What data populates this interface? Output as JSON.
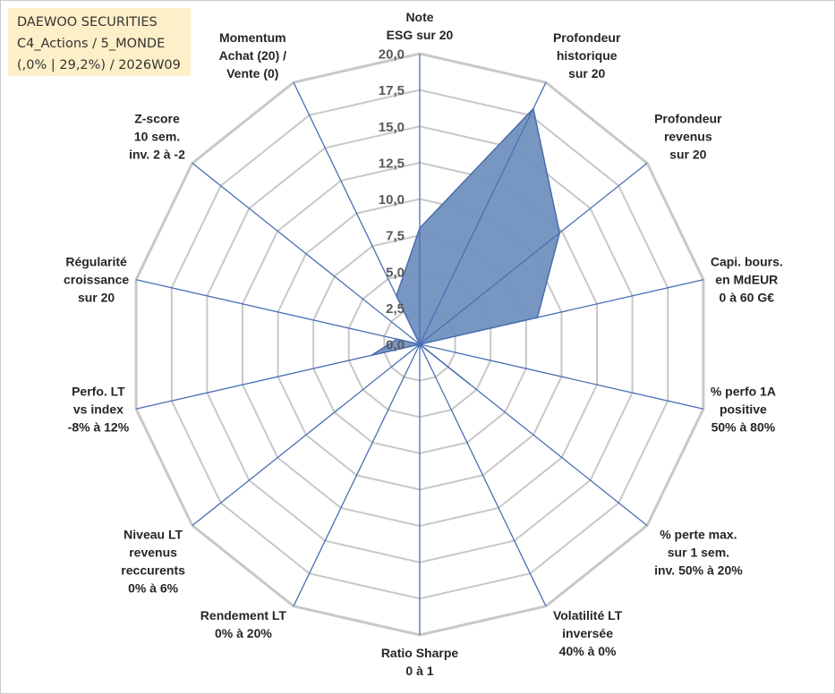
{
  "info": {
    "line1": "DAEWOO SECURITIES",
    "line2": "C4_Actions / 5_MONDE",
    "line3": "(,0% | 29,2%) / 2026W09"
  },
  "chart_data": {
    "type": "radar",
    "r_range": [
      0,
      20
    ],
    "tick_step": 2.5,
    "tick_labels": [
      "0,0",
      "2,5",
      "5,0",
      "7,5",
      "10,0",
      "12,5",
      "15,0",
      "17,5",
      "20,0"
    ],
    "grid": true,
    "axes": [
      [
        "Note",
        "ESG sur 20"
      ],
      [
        "Profondeur",
        "historique",
        "sur 20"
      ],
      [
        "Profondeur",
        "revenus",
        "sur 20"
      ],
      [
        "Capi. bours.",
        "en MdEUR",
        "0 à 60 G€"
      ],
      [
        "% perfo 1A",
        "positive",
        "50% à 80%"
      ],
      [
        "% perte max.",
        "sur 1 sem.",
        "inv. 50% à 20%"
      ],
      [
        "Volatilité LT",
        "inversée",
        "40% à 0%"
      ],
      [
        "Ratio Sharpe",
        "0 à 1"
      ],
      [
        "Rendement LT",
        "0% à 20%"
      ],
      [
        "Niveau LT",
        "revenus",
        "reccurents",
        "0% à 6%"
      ],
      [
        "Perfo. LT",
        "vs index",
        "-8% à 12%"
      ],
      [
        "Régularité",
        "croissance",
        "sur 20"
      ],
      [
        "Z-score",
        "10 sem.",
        "inv. 2 à -2"
      ],
      [
        "Momentum",
        "Achat (20) /",
        "Vente (0)"
      ]
    ],
    "series": [
      {
        "values": [
          8.0,
          18.0,
          12.3,
          8.3,
          0.0,
          4.4,
          0.0,
          0.0,
          0.0,
          0.0,
          3.4,
          1.6,
          0.0,
          3.7
        ],
        "color": "#7091bf",
        "edge": "#4a6da8"
      }
    ],
    "colors": {
      "grid": "#c8c8c8",
      "spoke": "#4a6fb5",
      "fill": "#7091bf"
    }
  }
}
